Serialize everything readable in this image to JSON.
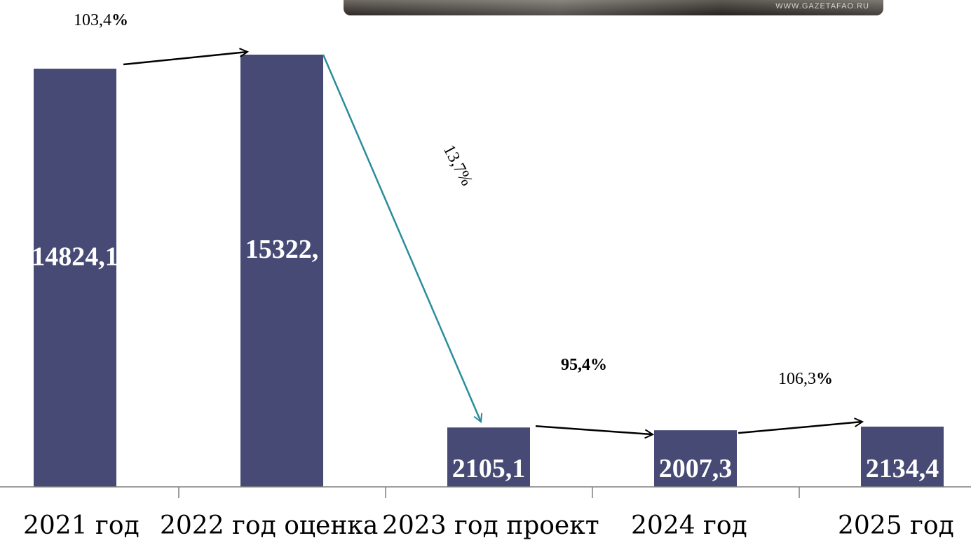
{
  "watermark": "WWW.GAZETAFAO.RU",
  "colors": {
    "bar": "#464a75",
    "axis": "#7f7f7f",
    "arrow": "#000000",
    "arrow_drop": "#2a8c9b"
  },
  "chart_data": {
    "type": "bar",
    "categories": [
      "2021 год",
      "2022 год оценка",
      "2023 год проект",
      "2024 год",
      "2025 год"
    ],
    "values": [
      14824.1,
      15322.0,
      2105.1,
      2007.3,
      2134.4
    ],
    "data_labels": [
      "14824,1",
      "15322,",
      "2105,1",
      "2007,3",
      "2134,4"
    ],
    "title": "",
    "xlabel": "",
    "ylabel": "",
    "ylim": [
      0,
      16000
    ],
    "grid": false,
    "legend": "none",
    "annotations": [
      {
        "from": 0,
        "to": 1,
        "text": "103,4",
        "suffix": "%"
      },
      {
        "from": 1,
        "to": 2,
        "text": "13,7%"
      },
      {
        "from": 2,
        "to": 3,
        "text": "95,4%"
      },
      {
        "from": 3,
        "to": 4,
        "text": "106,3",
        "suffix": "%"
      }
    ]
  }
}
